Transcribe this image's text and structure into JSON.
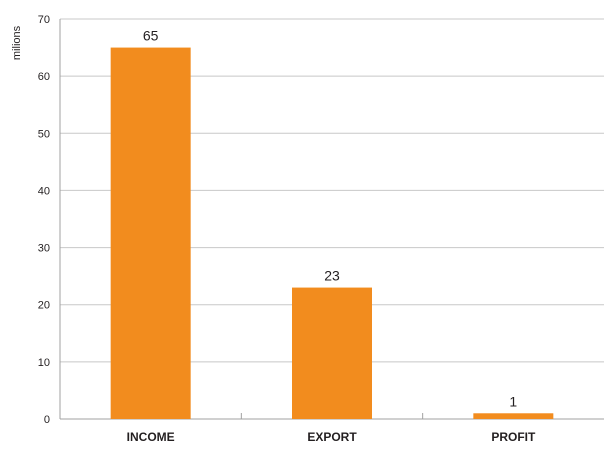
{
  "chart_data": {
    "type": "bar",
    "categories": [
      "INCOME",
      "EXPORT",
      "PROFIT"
    ],
    "values": [
      65,
      23,
      1
    ],
    "data_labels": [
      "65",
      "23",
      "1"
    ],
    "title": "",
    "xlabel": "",
    "ylabel": "milions",
    "ylim": [
      0,
      70
    ],
    "yticks": [
      0,
      10,
      20,
      30,
      40,
      50,
      60,
      70
    ],
    "ytick_labels": [
      "0",
      "10",
      "20",
      "30",
      "40",
      "50",
      "60",
      "70"
    ],
    "grid": true,
    "legend": "none",
    "colors": {
      "bar": "#f28c1e",
      "grid": "#c8c8c8",
      "axis": "#a0a0a0",
      "text": "#231f20"
    }
  }
}
